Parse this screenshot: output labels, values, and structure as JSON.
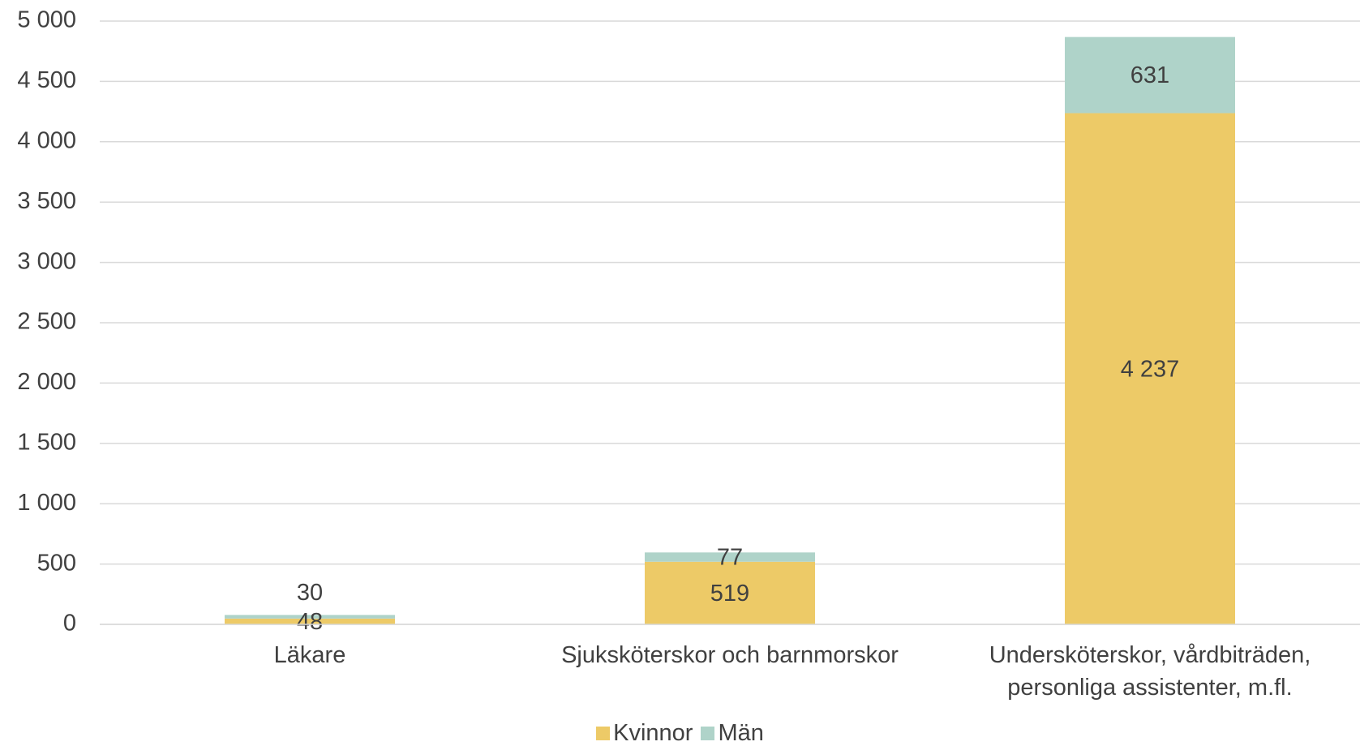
{
  "chart_data": {
    "type": "stacked-bar",
    "categories": [
      "Läkare",
      "Sjuksköterskor och barnmorskor",
      "Undersköterskor, vårdbiträden, personliga assistenter, m.fl."
    ],
    "series": [
      {
        "name": "Kvinnor",
        "color": "#edca67",
        "values": [
          48,
          519,
          4237
        ],
        "value_labels": [
          "48",
          "519",
          "4 237"
        ]
      },
      {
        "name": "Män",
        "color": "#afd3c9",
        "values": [
          30,
          77,
          631
        ]
      }
    ],
    "ylim": [
      0,
      5000
    ],
    "yticks": [
      0,
      500,
      {
        "value": 1000,
        "label": "1 000"
      },
      {
        "value": 1500,
        "label": "1 500"
      },
      {
        "value": 2000,
        "label": "2 000"
      },
      {
        "value": 2500,
        "label": "2 500"
      },
      {
        "value": 3000,
        "label": "3 000"
      },
      {
        "value": 3500,
        "label": "3 500"
      },
      {
        "value": 4000,
        "label": "4 000"
      },
      {
        "value": 4500,
        "label": "4 500"
      },
      {
        "value": 5000,
        "label": "5 000"
      }
    ],
    "grid": true,
    "legend": "bottom"
  }
}
